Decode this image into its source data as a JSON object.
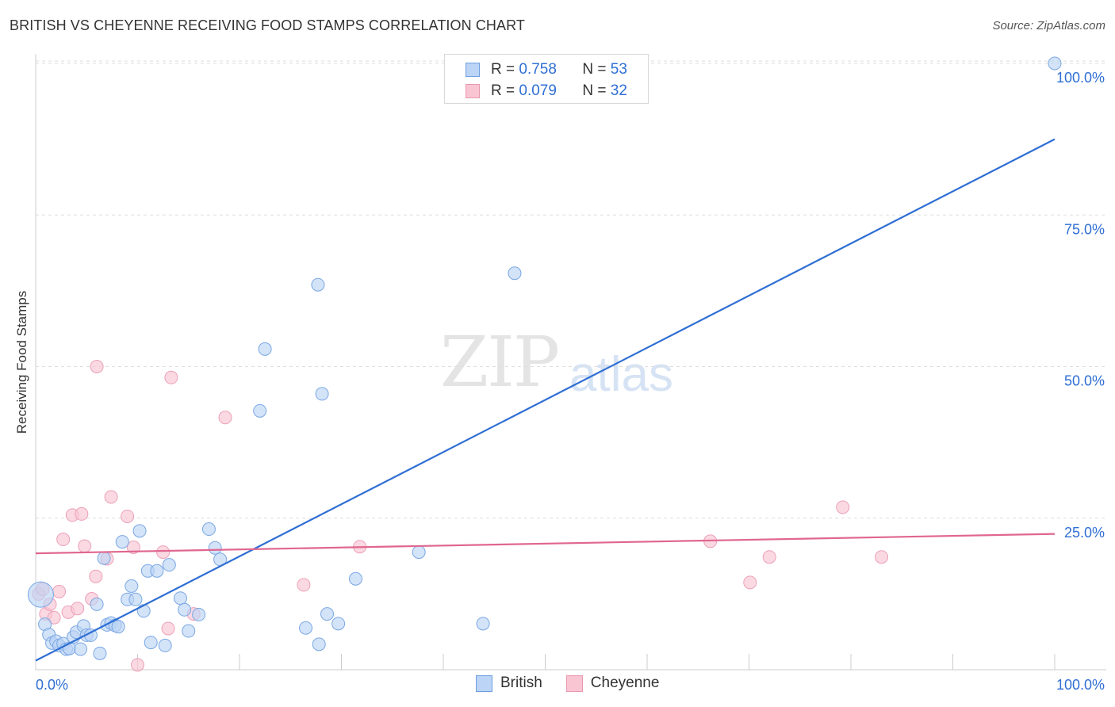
{
  "header": {
    "title": "BRITISH VS CHEYENNE RECEIVING FOOD STAMPS CORRELATION CHART",
    "source": "Source: ZipAtlas.com"
  },
  "watermark": {
    "zip": "ZIP",
    "atlas": "atlas"
  },
  "legend": {
    "rows": [
      {
        "r_label": "R =",
        "r_value": "0.758",
        "n_label": "N =",
        "n_value": "53"
      },
      {
        "r_label": "R =",
        "r_value": "0.079",
        "n_label": "N =",
        "n_value": "32"
      }
    ],
    "bottom": [
      "British",
      "Cheyenne"
    ]
  },
  "chart_data": {
    "type": "scatter",
    "title": "BRITISH VS CHEYENNE RECEIVING FOOD STAMPS CORRELATION CHART",
    "xlabel": "",
    "ylabel": "Receiving Food Stamps",
    "xlim": [
      0,
      100
    ],
    "ylim": [
      0,
      100
    ],
    "x_tick_labels": [
      "0.0%",
      "100.0%"
    ],
    "y_tick_values": [
      25,
      50,
      75,
      100
    ],
    "y_tick_labels": [
      "25.0%",
      "50.0%",
      "75.0%",
      "100.0%"
    ],
    "grid": true,
    "colors": {
      "british": "#2f6fd4",
      "cheyenne": "#e06690",
      "british_fill": "#bcd4f5",
      "cheyenne_fill": "#f9c5d3",
      "tick_label": "#2f6fd4"
    },
    "series": [
      {
        "name": "British",
        "r": 0.758,
        "n": 53,
        "trendline": {
          "x": [
            0,
            100
          ],
          "y": [
            1.5,
            87.5
          ]
        },
        "points": [
          [
            0.5,
            12.4
          ],
          [
            0.9,
            7.5
          ],
          [
            1.3,
            5.8
          ],
          [
            1.6,
            4.4
          ],
          [
            2.0,
            4.7
          ],
          [
            2.3,
            4.0
          ],
          [
            2.7,
            4.3
          ],
          [
            3.0,
            3.4
          ],
          [
            3.3,
            3.5
          ],
          [
            3.7,
            5.4
          ],
          [
            4.0,
            6.2
          ],
          [
            4.4,
            3.4
          ],
          [
            4.7,
            7.2
          ],
          [
            5.0,
            5.7
          ],
          [
            5.4,
            5.7
          ],
          [
            6.0,
            10.8
          ],
          [
            6.3,
            2.7
          ],
          [
            6.7,
            18.4
          ],
          [
            7.0,
            7.4
          ],
          [
            7.4,
            7.7
          ],
          [
            7.8,
            7.3
          ],
          [
            8.1,
            7.1
          ],
          [
            8.5,
            21.1
          ],
          [
            9.0,
            11.6
          ],
          [
            9.4,
            13.8
          ],
          [
            9.8,
            11.6
          ],
          [
            10.2,
            22.9
          ],
          [
            10.6,
            9.7
          ],
          [
            11.0,
            16.3
          ],
          [
            11.3,
            4.5
          ],
          [
            11.9,
            16.3
          ],
          [
            12.7,
            4.0
          ],
          [
            13.1,
            17.3
          ],
          [
            14.2,
            11.8
          ],
          [
            14.6,
            9.9
          ],
          [
            15.0,
            6.4
          ],
          [
            16.0,
            9.1
          ],
          [
            17.0,
            23.2
          ],
          [
            17.6,
            20.1
          ],
          [
            18.1,
            18.2
          ],
          [
            22.0,
            42.7
          ],
          [
            27.7,
            63.5
          ],
          [
            28.1,
            45.5
          ],
          [
            31.4,
            15.0
          ],
          [
            28.6,
            9.2
          ],
          [
            27.8,
            4.2
          ],
          [
            26.5,
            6.9
          ],
          [
            29.7,
            7.6
          ],
          [
            37.6,
            19.4
          ],
          [
            43.9,
            7.6
          ],
          [
            47.0,
            65.4
          ],
          [
            100.0,
            100.0
          ],
          [
            22.5,
            52.9
          ]
        ]
      },
      {
        "name": "Cheyenne",
        "r": 0.079,
        "n": 32,
        "trendline": {
          "x": [
            0,
            100
          ],
          "y": [
            19.2,
            22.4
          ]
        },
        "points": [
          [
            0.3,
            12.5
          ],
          [
            0.7,
            13.3
          ],
          [
            1.0,
            9.2
          ],
          [
            1.4,
            10.8
          ],
          [
            1.8,
            8.6
          ],
          [
            2.3,
            12.9
          ],
          [
            2.7,
            21.5
          ],
          [
            3.2,
            9.5
          ],
          [
            3.6,
            25.5
          ],
          [
            4.1,
            10.1
          ],
          [
            4.5,
            25.7
          ],
          [
            4.8,
            20.4
          ],
          [
            5.5,
            11.7
          ],
          [
            5.9,
            15.4
          ],
          [
            6.0,
            50.0
          ],
          [
            7.0,
            18.3
          ],
          [
            7.4,
            28.5
          ],
          [
            9.0,
            25.3
          ],
          [
            9.6,
            20.2
          ],
          [
            10.0,
            0.8
          ],
          [
            12.5,
            19.4
          ],
          [
            13.0,
            6.8
          ],
          [
            13.3,
            48.2
          ],
          [
            15.5,
            9.2
          ],
          [
            18.6,
            41.6
          ],
          [
            26.3,
            14.0
          ],
          [
            31.8,
            20.3
          ],
          [
            66.2,
            21.2
          ],
          [
            70.1,
            14.4
          ],
          [
            72.0,
            18.6
          ],
          [
            79.2,
            26.8
          ],
          [
            83.0,
            18.6
          ]
        ]
      }
    ]
  }
}
